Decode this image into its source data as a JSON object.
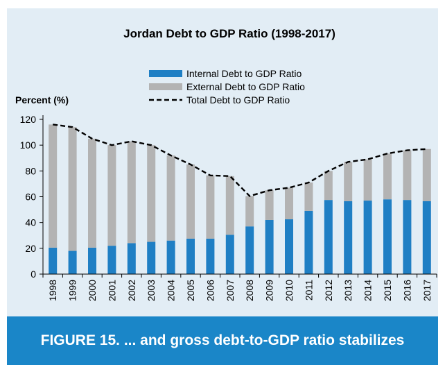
{
  "caption": "FIGURE 15. ... and gross debt-to-GDP ratio stabilizes",
  "chart_data": {
    "type": "bar",
    "title": "Jordan Debt to GDP Ratio (1998-2017)",
    "ylabel": "Percent (%)",
    "ylim": [
      0,
      120
    ],
    "yticks": [
      0,
      20,
      40,
      60,
      80,
      100,
      120
    ],
    "categories": [
      "1998",
      "1999",
      "2000",
      "2001",
      "2002",
      "2003",
      "2004",
      "2005",
      "2006",
      "2007",
      "2008",
      "2009",
      "2010",
      "2011",
      "2012",
      "2013",
      "2014",
      "2015",
      "2016",
      "2017"
    ],
    "stacked": true,
    "legend_position": "top-center",
    "series": [
      {
        "name": "Internal Debt to GDP Ratio",
        "kind": "bar",
        "color": "#1f7fc4",
        "values": [
          20.5,
          18,
          20.5,
          22,
          24,
          25,
          26,
          27.5,
          27.5,
          30.5,
          37,
          42,
          42.5,
          49,
          57.5,
          56.5,
          57,
          58,
          57.5,
          56.5
        ]
      },
      {
        "name": "External Debt to GDP Ratio",
        "kind": "bar",
        "color": "#b3b3b3",
        "values": [
          95.5,
          96,
          84.5,
          78,
          79,
          75,
          66,
          57.5,
          49,
          45.5,
          23.5,
          23,
          24.5,
          22,
          22.5,
          30.5,
          32,
          35.5,
          38.5,
          40.5
        ]
      },
      {
        "name": "Total Debt to GDP Ratio",
        "kind": "line",
        "color": "#000000",
        "dashed": true,
        "values": [
          116,
          114,
          105,
          100,
          103,
          100,
          92,
          85,
          76.5,
          76,
          60.5,
          65,
          67,
          71,
          80,
          87,
          89,
          93.5,
          96,
          97
        ]
      }
    ]
  }
}
